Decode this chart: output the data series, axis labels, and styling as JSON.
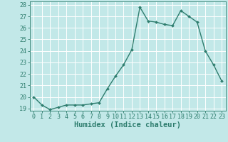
{
  "x": [
    0,
    1,
    2,
    3,
    4,
    5,
    6,
    7,
    8,
    9,
    10,
    11,
    12,
    13,
    14,
    15,
    16,
    17,
    18,
    19,
    20,
    21,
    22,
    23
  ],
  "y": [
    20.0,
    19.3,
    18.9,
    19.1,
    19.3,
    19.3,
    19.3,
    19.4,
    19.5,
    20.7,
    21.8,
    22.8,
    24.1,
    27.8,
    26.6,
    26.5,
    26.3,
    26.2,
    27.5,
    27.0,
    26.5,
    24.0,
    22.8,
    21.4
  ],
  "xlim": [
    -0.5,
    23.5
  ],
  "ylim": [
    18.8,
    28.3
  ],
  "yticks": [
    19,
    20,
    21,
    22,
    23,
    24,
    25,
    26,
    27,
    28
  ],
  "xticks": [
    0,
    1,
    2,
    3,
    4,
    5,
    6,
    7,
    8,
    9,
    10,
    11,
    12,
    13,
    14,
    15,
    16,
    17,
    18,
    19,
    20,
    21,
    22,
    23
  ],
  "xlabel": "Humidex (Indice chaleur)",
  "line_color": "#2e7d6e",
  "marker": "D",
  "marker_size": 2.0,
  "bg_color": "#c2e8e8",
  "grid_color": "#ffffff",
  "tick_color": "#2e7d6e",
  "label_color": "#2e7d6e",
  "line_width": 1.0,
  "xlabel_fontsize": 7.5,
  "tick_fontsize": 6.0
}
